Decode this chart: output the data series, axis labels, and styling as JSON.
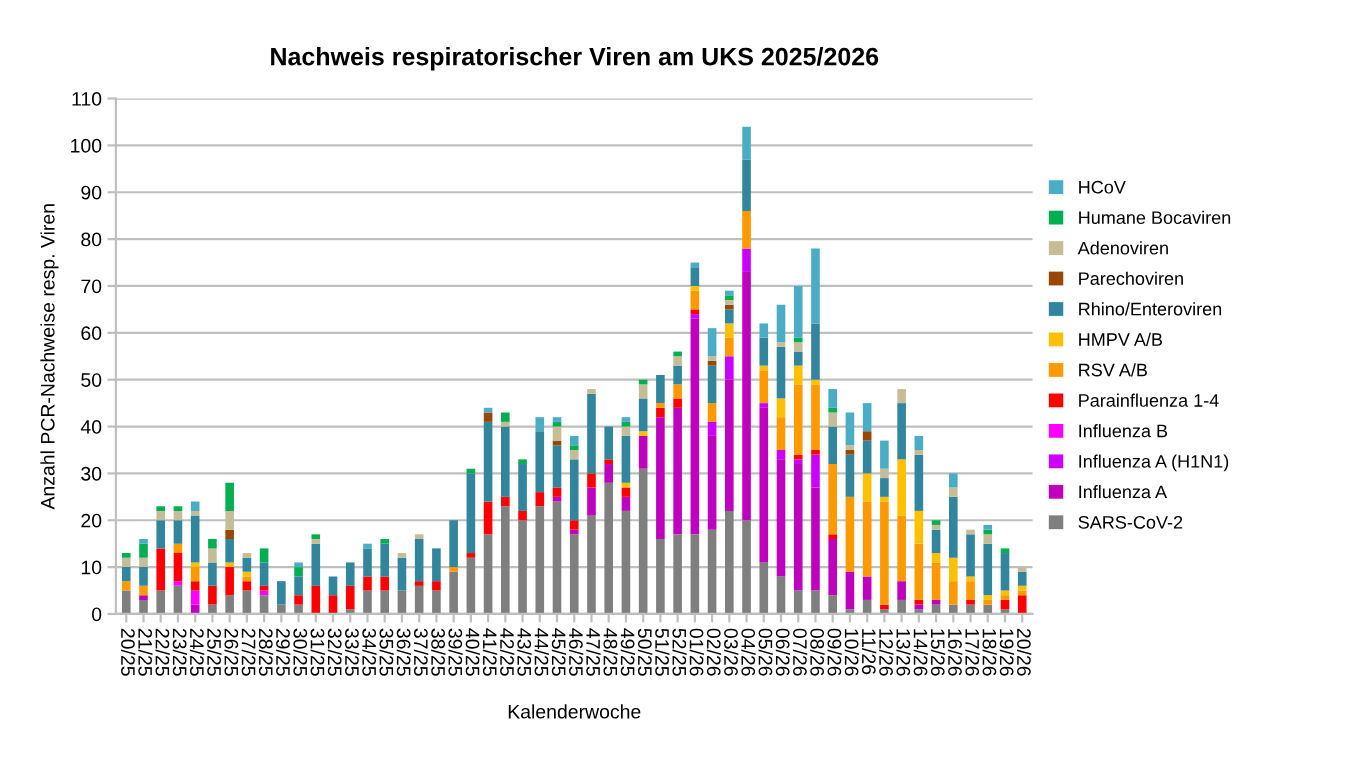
{
  "chart_data": {
    "type": "bar",
    "stacked": true,
    "title": "Nachweis respiratorischer Viren am UKS 2025/2026",
    "xlabel": "Kalenderwoche",
    "ylabel": "Anzahl PCR-Nachweise resp. Viren",
    "categories": [
      "20/25",
      "21/25",
      "22/25",
      "23/25",
      "24/25",
      "25/25",
      "26/25",
      "27/25",
      "28/25",
      "29/25",
      "30/25",
      "31/25",
      "32/25",
      "33/25",
      "34/25",
      "35/25",
      "36/25",
      "37/25",
      "38/25",
      "39/25",
      "40/25",
      "41/25",
      "42/25",
      "43/25",
      "44/25",
      "45/25",
      "46/25",
      "47/25",
      "48/25",
      "49/25",
      "50/25",
      "51/25",
      "52/25",
      "01/26",
      "02/26",
      "03/26",
      "04/26",
      "05/26",
      "06/26",
      "07/26",
      "08/26",
      "09/26",
      "10/26",
      "11/26",
      "12/26",
      "13/26",
      "14/26",
      "15/26",
      "16/26",
      "17/26",
      "18/26",
      "19/26",
      "20/26"
    ],
    "series": [
      {
        "name": "SARS-CoV-2",
        "color": "#7f7f7f",
        "values": [
          5,
          3,
          5,
          6,
          0,
          2,
          4,
          5,
          4,
          2,
          2,
          0,
          0,
          1,
          5,
          5,
          5,
          6,
          5,
          9,
          12,
          17,
          23,
          20,
          23,
          24,
          17,
          21,
          28,
          22,
          31,
          16,
          17,
          17,
          18,
          22,
          20,
          11,
          8,
          5,
          5,
          4,
          1,
          3,
          1,
          3,
          1,
          2,
          2,
          2,
          2,
          1,
          0
        ]
      },
      {
        "name": "Influenza A",
        "color": "#bf00bf",
        "values": [
          0,
          1,
          0,
          0,
          2,
          0,
          0,
          0,
          0,
          0,
          0,
          0,
          0,
          0,
          0,
          0,
          0,
          0,
          0,
          0,
          0,
          0,
          0,
          0,
          0,
          1,
          1,
          6,
          4,
          3,
          7,
          26,
          27,
          46,
          20,
          28,
          53,
          33,
          25,
          27,
          22,
          12,
          8,
          5,
          0,
          4,
          1,
          1,
          0,
          0,
          0,
          0,
          0
        ]
      },
      {
        "name": "Influenza A (H1N1)",
        "color": "#cc00ff",
        "values": [
          0,
          0,
          0,
          0,
          0,
          0,
          0,
          0,
          0,
          0,
          0,
          0,
          0,
          0,
          0,
          0,
          0,
          0,
          0,
          0,
          0,
          0,
          0,
          0,
          0,
          0,
          0,
          0,
          0,
          0,
          0,
          0,
          0,
          1,
          3,
          5,
          5,
          1,
          2,
          1,
          7,
          0,
          0,
          0,
          0,
          0,
          0,
          0,
          0,
          0,
          0,
          0,
          0
        ]
      },
      {
        "name": "Influenza B",
        "color": "#ff00ff",
        "values": [
          0,
          0,
          0,
          1,
          3,
          0,
          0,
          0,
          1,
          0,
          0,
          0,
          0,
          0,
          0,
          0,
          0,
          0,
          0,
          0,
          0,
          0,
          0,
          0,
          0,
          0,
          0,
          0,
          0,
          0,
          0,
          0,
          0,
          0,
          0,
          0,
          0,
          0,
          0,
          0,
          0,
          0,
          0,
          0,
          0,
          0,
          0,
          0,
          0,
          0,
          0,
          0,
          0
        ]
      },
      {
        "name": "Parainfluenza 1-4",
        "color": "#ff0000",
        "values": [
          0,
          0,
          9,
          6,
          2,
          4,
          6,
          2,
          1,
          0,
          2,
          6,
          4,
          5,
          3,
          3,
          0,
          1,
          2,
          0,
          1,
          7,
          2,
          2,
          3,
          2,
          2,
          3,
          1,
          2,
          0,
          2,
          2,
          1,
          0,
          0,
          0,
          0,
          0,
          1,
          1,
          1,
          0,
          0,
          1,
          0,
          1,
          0,
          0,
          1,
          0,
          2,
          4
        ]
      },
      {
        "name": "RSV A/B",
        "color": "#ff9900",
        "values": [
          2,
          2,
          0,
          2,
          3,
          0,
          0,
          1,
          0,
          0,
          0,
          0,
          0,
          0,
          0,
          0,
          0,
          0,
          0,
          1,
          0,
          0,
          0,
          0,
          0,
          0,
          0,
          0,
          0,
          0,
          0,
          1,
          3,
          4,
          4,
          4,
          8,
          7,
          7,
          15,
          14,
          15,
          16,
          16,
          22,
          14,
          12,
          8,
          5,
          4,
          1,
          1,
          1
        ]
      },
      {
        "name": "HMPV A/B",
        "color": "#ffc000",
        "values": [
          0,
          0,
          0,
          0,
          1,
          0,
          1,
          1,
          0,
          0,
          0,
          0,
          0,
          0,
          0,
          0,
          0,
          0,
          0,
          0,
          0,
          0,
          0,
          0,
          0,
          0,
          0,
          0,
          0,
          1,
          1,
          0,
          0,
          1,
          0,
          3,
          0,
          1,
          4,
          4,
          1,
          0,
          0,
          6,
          1,
          12,
          7,
          2,
          5,
          1,
          1,
          1,
          1
        ]
      },
      {
        "name": "Rhino/Enteroviren",
        "color": "#31859c",
        "values": [
          3,
          4,
          6,
          5,
          10,
          5,
          5,
          3,
          5,
          5,
          4,
          9,
          4,
          5,
          6,
          7,
          7,
          9,
          7,
          10,
          17,
          17,
          15,
          10,
          13,
          9,
          13,
          17,
          7,
          10,
          7,
          6,
          4,
          4,
          8,
          3,
          11,
          6,
          11,
          3,
          12,
          8,
          9,
          7,
          4,
          12,
          12,
          5,
          13,
          9,
          11,
          8,
          3
        ]
      },
      {
        "name": "Parechoviren",
        "color": "#974706",
        "values": [
          0,
          0,
          0,
          0,
          0,
          0,
          2,
          0,
          0,
          0,
          0,
          0,
          0,
          0,
          0,
          0,
          0,
          0,
          0,
          0,
          0,
          2,
          0,
          0,
          0,
          1,
          0,
          0,
          0,
          0,
          0,
          0,
          0,
          0,
          1,
          1,
          0,
          0,
          0,
          0,
          0,
          0,
          1,
          2,
          0,
          0,
          0,
          0,
          0,
          0,
          0,
          0,
          0
        ]
      },
      {
        "name": "Adenoviren",
        "color": "#c4bd97",
        "values": [
          2,
          2,
          2,
          2,
          1,
          3,
          4,
          1,
          0,
          0,
          0,
          1,
          0,
          0,
          0,
          0,
          1,
          1,
          0,
          0,
          0,
          0,
          1,
          0,
          0,
          3,
          2,
          1,
          0,
          2,
          3,
          0,
          2,
          0,
          1,
          1,
          0,
          0,
          1,
          2,
          0,
          3,
          1,
          0,
          2,
          3,
          1,
          1,
          2,
          1,
          2,
          0,
          1
        ]
      },
      {
        "name": "Humane Bocaviren",
        "color": "#00b050",
        "values": [
          1,
          3,
          1,
          1,
          0,
          2,
          6,
          0,
          3,
          0,
          2,
          1,
          0,
          0,
          0,
          1,
          0,
          0,
          0,
          0,
          1,
          0,
          2,
          1,
          0,
          1,
          1,
          0,
          0,
          1,
          1,
          0,
          1,
          0,
          0,
          1,
          0,
          0,
          0,
          1,
          0,
          1,
          0,
          0,
          0,
          0,
          0,
          1,
          0,
          0,
          1,
          1,
          0
        ]
      },
      {
        "name": "HCoV",
        "color": "#4bacc6",
        "values": [
          0,
          1,
          0,
          0,
          2,
          0,
          0,
          0,
          0,
          0,
          1,
          0,
          0,
          0,
          1,
          0,
          0,
          0,
          0,
          0,
          0,
          1,
          0,
          0,
          3,
          1,
          2,
          0,
          0,
          1,
          0,
          0,
          0,
          1,
          6,
          1,
          7,
          3,
          8,
          11,
          16,
          4,
          7,
          6,
          6,
          0,
          3,
          0,
          3,
          0,
          1,
          0,
          0
        ]
      }
    ],
    "ylim": [
      0,
      110
    ],
    "yticks": [
      0,
      10,
      20,
      30,
      40,
      50,
      60,
      70,
      80,
      90,
      100,
      110
    ],
    "grid": "y",
    "legend": "right"
  }
}
